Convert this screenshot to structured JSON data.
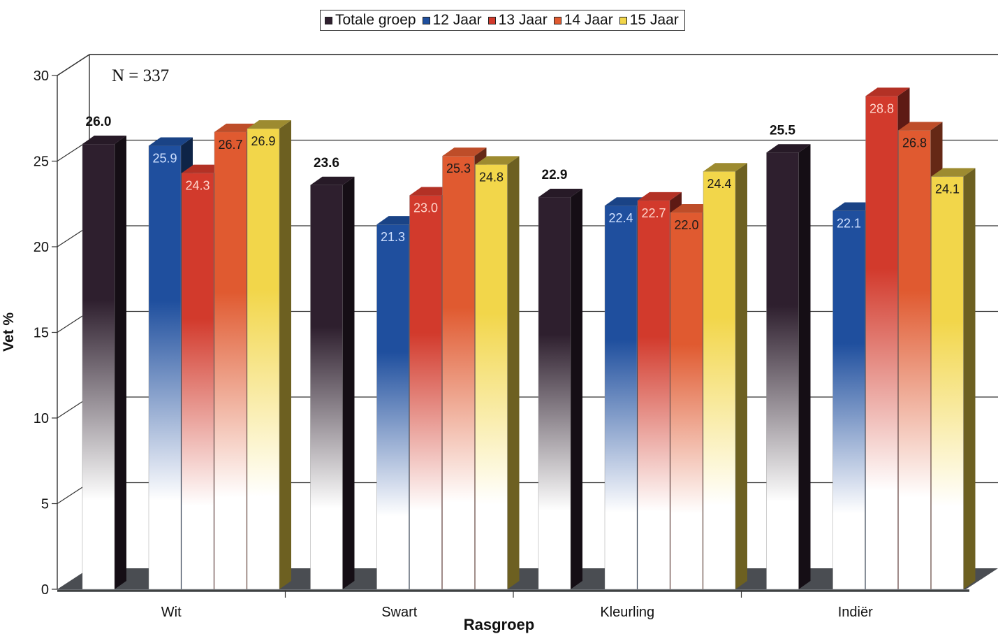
{
  "chart_data": {
    "type": "bar",
    "title": "",
    "xlabel": "Rasgroep",
    "ylabel": "Vet %",
    "annotation": "N = 337",
    "ylim": [
      0,
      30
    ],
    "yticks": [
      "0",
      "5",
      "10",
      "15",
      "20",
      "25",
      "30"
    ],
    "grid": true,
    "legend_position": "top-center",
    "categories": [
      "Wit",
      "Swart",
      "Kleurling",
      "Indiër"
    ],
    "series": [
      {
        "name": "Totale groep",
        "color": "#2e1f2e",
        "label_color": "#111111",
        "labels": [
          "26.0",
          "23.6",
          "22.9",
          "25.5"
        ],
        "values": [
          26.0,
          23.6,
          22.9,
          25.5
        ]
      },
      {
        "name": "12 Jaar",
        "color": "#1f4f9e",
        "label_color": "#cfe0ff",
        "labels": [
          "25.9",
          "21.3",
          "22.4",
          "22.1"
        ],
        "values": [
          25.9,
          21.3,
          22.4,
          22.1
        ]
      },
      {
        "name": "13 Jaar",
        "color": "#d23a2c",
        "label_color": "#ffd6cc",
        "labels": [
          "24.3",
          "23.0",
          "22.7",
          "28.8"
        ],
        "values": [
          24.3,
          23.0,
          22.7,
          28.8
        ]
      },
      {
        "name": "14 Jaar",
        "color": "#e05a30",
        "label_color": "#1a1a1a",
        "labels": [
          "26.7",
          "25.3",
          "22.0",
          "26.8"
        ],
        "values": [
          26.7,
          25.3,
          22.0,
          26.8
        ]
      },
      {
        "name": "15 Jaar",
        "color": "#f2d64a",
        "label_color": "#1a1a1a",
        "labels": [
          "26.9",
          "24.8",
          "24.4",
          "24.1"
        ],
        "values": [
          26.9,
          24.8,
          24.4,
          24.1
        ]
      }
    ]
  }
}
